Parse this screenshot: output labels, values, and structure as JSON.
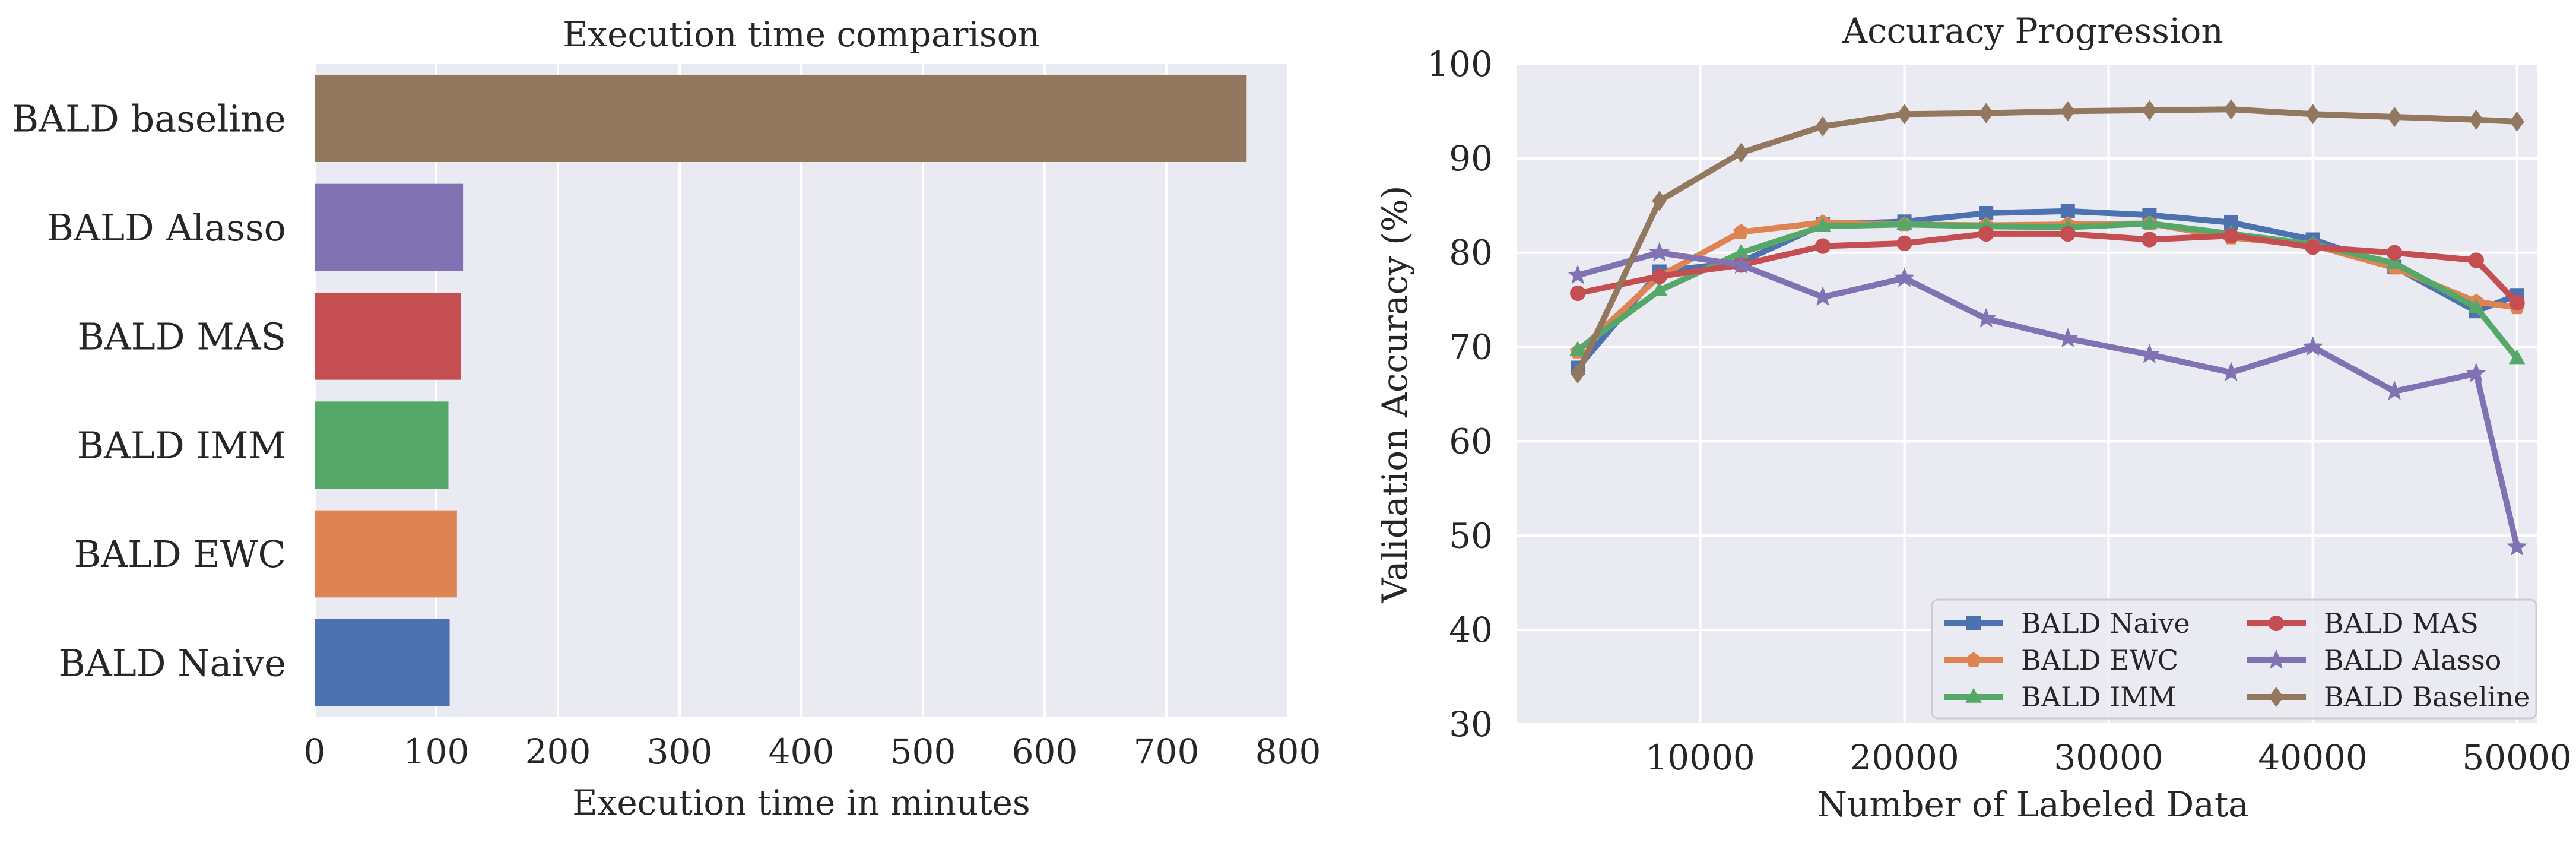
{
  "chart_data": [
    {
      "type": "bar",
      "orientation": "horizontal",
      "title": "Execution time comparison",
      "xlabel": "Execution time in minutes",
      "ylabel": "",
      "categories": [
        "BALD baseline",
        "BALD Alasso",
        "BALD MAS",
        "BALD IMM",
        "BALD EWC",
        "BALD Naive"
      ],
      "values": [
        766,
        122,
        120,
        110,
        117,
        111
      ],
      "colors": [
        "#937860",
        "#8172b3",
        "#c44e52",
        "#55a868",
        "#dd8452",
        "#4c72b0"
      ],
      "xlim": [
        0,
        800
      ],
      "xticks": [
        "0",
        "100",
        "200",
        "300",
        "400",
        "500",
        "600",
        "700",
        "800"
      ],
      "xtick_values": [
        0,
        100,
        200,
        300,
        400,
        500,
        600,
        700,
        800
      ],
      "grid": true,
      "background": "#eaeaf2"
    },
    {
      "type": "line",
      "title": "Accuracy Progression",
      "xlabel": "Number of Labeled Data",
      "ylabel": "Validation Accuracy (%)",
      "xlim": [
        1000,
        51000
      ],
      "ylim": [
        30,
        100
      ],
      "xticks": [
        "10000",
        "20000",
        "30000",
        "40000",
        "50000"
      ],
      "xtick_values": [
        10000,
        20000,
        30000,
        40000,
        50000
      ],
      "yticks": [
        "30",
        "40",
        "50",
        "60",
        "70",
        "80",
        "90",
        "100"
      ],
      "ytick_values": [
        30,
        40,
        50,
        60,
        70,
        80,
        90,
        100
      ],
      "grid": true,
      "background": "#eaeaf2",
      "legend_position": "lower-right",
      "x": [
        4000,
        8000,
        12000,
        16000,
        20000,
        24000,
        28000,
        32000,
        36000,
        40000,
        44000,
        48000,
        50000
      ],
      "series": [
        {
          "name": "BALD Naive",
          "color": "#4c72b0",
          "marker": "square",
          "values": [
            67.8,
            78.0,
            79.0,
            83.0,
            83.3,
            84.2,
            84.4,
            84.0,
            83.2,
            81.4,
            78.5,
            73.8,
            75.5
          ]
        },
        {
          "name": "BALD EWC",
          "color": "#dd8452",
          "marker": "pentagon",
          "values": [
            69.5,
            77.5,
            82.2,
            83.2,
            83.0,
            82.9,
            83.0,
            83.1,
            81.6,
            80.8,
            78.4,
            74.8,
            74.2
          ]
        },
        {
          "name": "BALD IMM",
          "color": "#55a868",
          "marker": "triangle",
          "values": [
            69.7,
            76.0,
            80.0,
            82.8,
            83.0,
            82.8,
            82.7,
            83.1,
            82.0,
            80.9,
            78.9,
            74.2,
            68.8
          ]
        },
        {
          "name": "BALD MAS",
          "color": "#c44e52",
          "marker": "circle",
          "values": [
            75.7,
            77.5,
            78.7,
            80.7,
            81.0,
            82.0,
            82.0,
            81.4,
            81.8,
            80.6,
            80.0,
            79.2,
            74.7
          ]
        },
        {
          "name": "BALD Alasso",
          "color": "#8172b3",
          "marker": "star",
          "values": [
            77.6,
            80.0,
            78.7,
            75.3,
            77.3,
            73.0,
            70.9,
            69.2,
            67.3,
            70.0,
            65.3,
            67.2,
            48.8
          ]
        },
        {
          "name": "BALD Baseline",
          "color": "#937860",
          "marker": "diamond",
          "values": [
            67.2,
            85.5,
            90.6,
            93.4,
            94.7,
            94.8,
            95.0,
            95.1,
            95.2,
            94.7,
            94.4,
            94.1,
            93.9
          ]
        }
      ]
    }
  ]
}
